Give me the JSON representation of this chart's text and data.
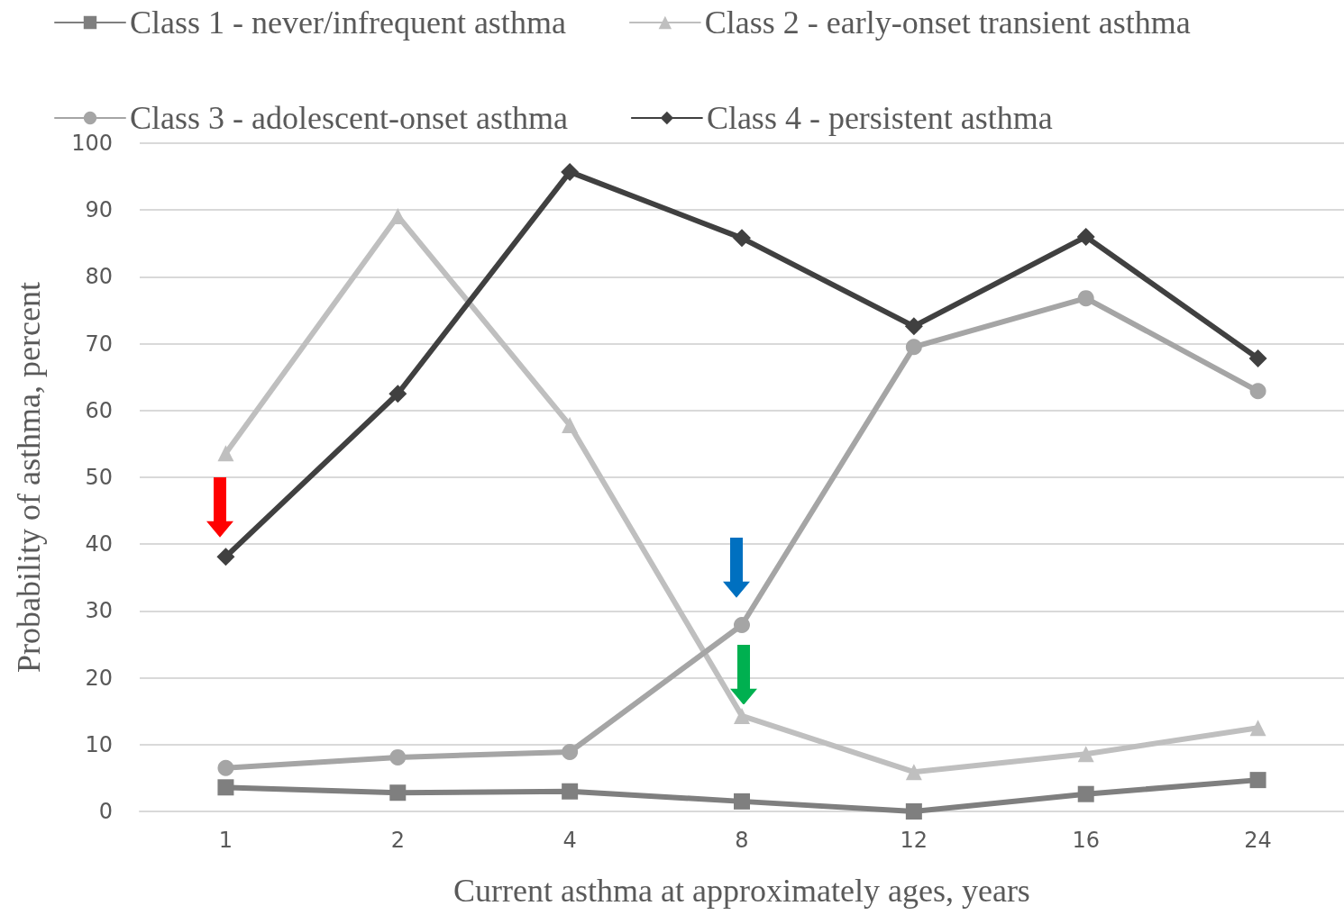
{
  "chart_data": {
    "type": "line",
    "xlabel": "Current asthma at approximately ages, years",
    "ylabel": "Probability of asthma, percent",
    "categories": [
      "1",
      "2",
      "4",
      "8",
      "12",
      "16",
      "24"
    ],
    "ylim": [
      0,
      100
    ],
    "yticks": [
      0,
      10,
      20,
      30,
      40,
      50,
      60,
      70,
      80,
      90,
      100
    ],
    "grid": "y",
    "legend": "top",
    "line_style": "solid",
    "series": [
      {
        "name": "Class 1 - never/infrequent asthma",
        "color": "#7f7f7f",
        "marker": "square",
        "values": [
          3.6,
          2.8,
          3.0,
          1.5,
          0,
          2.6,
          4.7
        ]
      },
      {
        "name": "Class 2 - early-onset transient asthma",
        "color": "#bfbfbf",
        "marker": "triangle",
        "values": [
          53.6,
          89.1,
          57.8,
          14.3,
          5.9,
          8.6,
          12.5
        ]
      },
      {
        "name": "Class 3 - adolescent-onset asthma",
        "color": "#a5a5a5",
        "marker": "circle",
        "values": [
          6.5,
          8.1,
          8.9,
          27.9,
          69.5,
          76.8,
          62.9
        ]
      },
      {
        "name": "Class 4 - persistent asthma",
        "color": "#404040",
        "marker": "diamond",
        "values": [
          38.1,
          62.5,
          95.7,
          85.8,
          72.6,
          86.0,
          67.8
        ]
      }
    ]
  }
}
